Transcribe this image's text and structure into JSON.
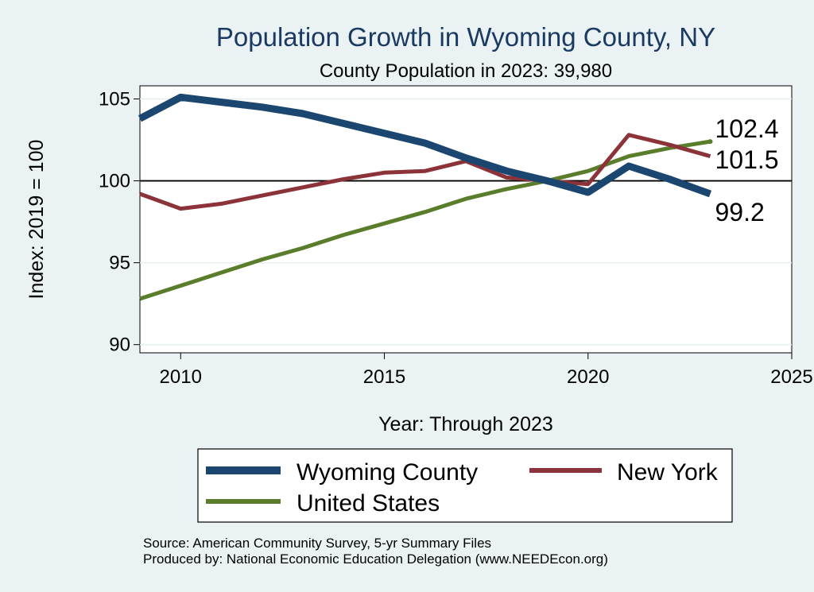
{
  "chart_data": {
    "type": "line",
    "title": "Population Growth in Wyoming County, NY",
    "subtitle": "County Population in 2023: 39,980",
    "xlabel": "Year: Through 2023",
    "ylabel": "Index: 2019 = 100",
    "xlim": [
      2009,
      2025
    ],
    "ylim": [
      89.5,
      105.8
    ],
    "x_ticks": [
      "2010",
      "2015",
      "2020",
      "2025"
    ],
    "y_ticks": [
      "90",
      "95",
      "100",
      "105"
    ],
    "reference_line": 100,
    "grid": true,
    "legend_position": "bottom",
    "x": [
      2009,
      2010,
      2011,
      2012,
      2013,
      2014,
      2015,
      2016,
      2017,
      2018,
      2019,
      2020,
      2021,
      2022,
      2023
    ],
    "series": [
      {
        "name": "Wyoming  County",
        "color": "#1a4670",
        "values": [
          103.8,
          105.1,
          104.8,
          104.5,
          104.1,
          103.5,
          102.9,
          102.3,
          101.4,
          100.6,
          100.0,
          99.3,
          100.9,
          100.1,
          99.2
        ],
        "end_label": "99.2"
      },
      {
        "name": "New York",
        "color": "#8c3339",
        "values": [
          99.2,
          98.3,
          98.6,
          99.1,
          99.6,
          100.1,
          100.5,
          100.6,
          101.2,
          100.2,
          100.0,
          99.8,
          102.8,
          102.2,
          101.5
        ],
        "end_label": "101.5"
      },
      {
        "name": "United States",
        "color": "#5a7d2b",
        "values": [
          92.8,
          93.6,
          94.4,
          95.2,
          95.9,
          96.7,
          97.4,
          98.1,
          98.9,
          99.5,
          100.0,
          100.6,
          101.5,
          102.0,
          102.4
        ],
        "end_label": "102.4"
      }
    ],
    "notes": [
      "Source: American Community Survey, 5-yr Summary Files",
      "Produced by: National Economic Education Delegation (www.NEEDEcon.org)"
    ]
  }
}
